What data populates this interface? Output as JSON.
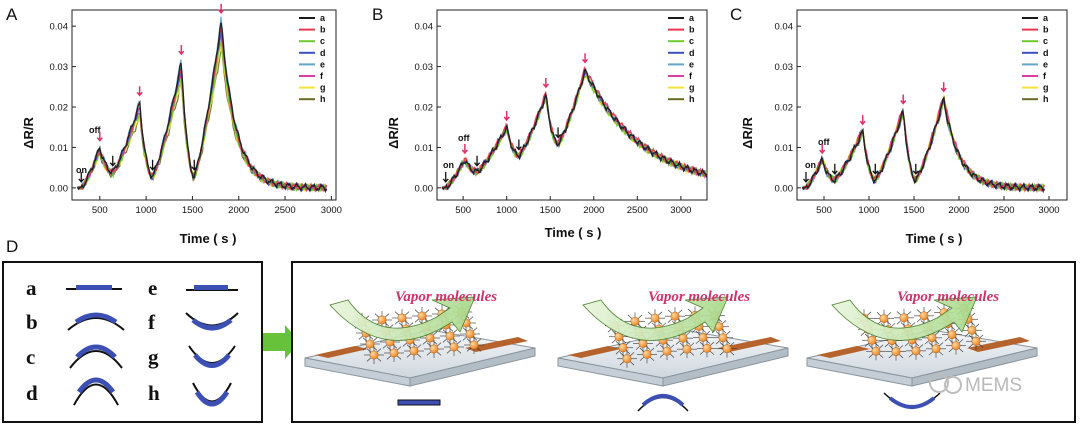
{
  "chart_data": [
    {
      "panel": "A",
      "type": "line",
      "xlabel": "Time ( s )",
      "ylabel": "ΔR/R",
      "xlim": [
        200,
        3050
      ],
      "ylim": [
        -0.003,
        0.044
      ],
      "xticks": [
        500,
        1000,
        1500,
        2000,
        2500,
        3000
      ],
      "yticks": [
        0.0,
        0.01,
        0.02,
        0.03,
        0.04
      ],
      "annotations": {
        "on": "on",
        "off": "off"
      },
      "start": 300,
      "end": 2950,
      "peaks": [
        {
          "t": 500,
          "v": 0.01,
          "off": 0.004
        },
        {
          "t": 930,
          "v": 0.021,
          "off": 0.003
        },
        {
          "t": 1380,
          "v": 0.031,
          "off": 0.003
        },
        {
          "t": 1810,
          "v": 0.041,
          "off": 0.002
        }
      ],
      "series_scale": [
        1.0,
        0.97,
        0.9,
        0.95,
        1.02,
        0.93,
        0.87,
        0.84
      ],
      "tail_tau": 160
    },
    {
      "panel": "B",
      "type": "line",
      "xlabel": "Time ( s )",
      "ylabel": "ΔR/R",
      "xlim": [
        200,
        3300
      ],
      "ylim": [
        -0.003,
        0.044
      ],
      "xticks": [
        500,
        1000,
        1500,
        2000,
        2500,
        3000
      ],
      "yticks": [
        0.0,
        0.01,
        0.02,
        0.03,
        0.04
      ],
      "annotations": {
        "on": "on",
        "off": "off"
      },
      "start": 300,
      "end": 3300,
      "peaks": [
        {
          "t": 520,
          "v": 0.007,
          "off": 0.004
        },
        {
          "t": 1000,
          "v": 0.015,
          "off": 0.008
        },
        {
          "t": 1450,
          "v": 0.023,
          "off": 0.011
        },
        {
          "t": 1900,
          "v": 0.029,
          "off": 0.0
        }
      ],
      "series_scale": [
        1.0,
        1.02,
        0.98,
        0.99,
        1.0,
        1.01,
        0.97,
        0.98
      ],
      "tail_tau": 650
    },
    {
      "panel": "C",
      "type": "line",
      "xlabel": "Time ( s )",
      "ylabel": "ΔR/R",
      "xlim": [
        200,
        3200
      ],
      "ylim": [
        -0.003,
        0.044
      ],
      "xticks": [
        500,
        1000,
        1500,
        2000,
        2500,
        3000
      ],
      "yticks": [
        0.0,
        0.01,
        0.02,
        0.03,
        0.04
      ],
      "annotations": {
        "on": "on",
        "off": "off"
      },
      "start": 300,
      "end": 2950,
      "peaks": [
        {
          "t": 480,
          "v": 0.007,
          "off": 0.002
        },
        {
          "t": 930,
          "v": 0.014,
          "off": 0.002
        },
        {
          "t": 1380,
          "v": 0.019,
          "off": 0.002
        },
        {
          "t": 1830,
          "v": 0.022,
          "off": 0.0
        }
      ],
      "series_scale": [
        1.0,
        1.03,
        0.98,
        0.97,
        1.02,
        1.05,
        1.04,
        0.96
      ],
      "tail_tau": 170
    }
  ],
  "panels": {
    "A": "A",
    "B": "B",
    "C": "C",
    "D": "D"
  },
  "legend": {
    "labels": [
      "a",
      "b",
      "c",
      "d",
      "e",
      "f",
      "g",
      "h"
    ],
    "colors": [
      "#1a1a1a",
      "#e8384f",
      "#6ecb2e",
      "#3a4fc4",
      "#62a6c9",
      "#d93fa0",
      "#f5e33a",
      "#6b6a22"
    ]
  },
  "key": {
    "left": [
      "a",
      "b",
      "c",
      "d"
    ],
    "right": [
      "e",
      "f",
      "g",
      "h"
    ]
  },
  "schematic": {
    "caption": "Vapor molecules",
    "count": 3
  },
  "colors": {
    "arrow": "#67c23a",
    "film": "#3c4fb3",
    "vapor_text": "#d0336a",
    "peak_arrow": "#e0306a",
    "electrode": "#b5622c",
    "particle": "#f39a3a"
  },
  "watermark": {
    "text": "MEMS"
  }
}
